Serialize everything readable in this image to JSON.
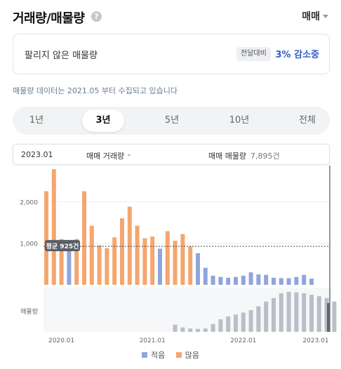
{
  "header": {
    "title": "거래량/매물량",
    "help_icon": "question-circle-icon",
    "type_select": "매매"
  },
  "summary": {
    "label": "팔리지 않은 매물량",
    "badge": "전달대비",
    "value": "3% 감소중"
  },
  "notice": "매물량 데이터는 2021.05 부터 수집되고 있습니다",
  "period_tabs": [
    {
      "label": "1년",
      "active": false
    },
    {
      "label": "3년",
      "active": true
    },
    {
      "label": "5년",
      "active": false
    },
    {
      "label": "10년",
      "active": false
    },
    {
      "label": "전체",
      "active": false
    }
  ],
  "tooltip": {
    "date": "2023.01",
    "volume_label": "매매 거래량",
    "volume_value": "-",
    "listings_label": "매매 매물량",
    "listings_value": "7,895건"
  },
  "chart_data": {
    "type": "bar",
    "y_ticks": [
      "2,000",
      "1,000"
    ],
    "y_tick_values": [
      2000,
      1000
    ],
    "ylim": [
      0,
      2800
    ],
    "average": {
      "label": "평균 925건",
      "value": 925
    },
    "x_tick_labels": [
      {
        "label": "2020.01",
        "index": 2
      },
      {
        "label": "2021.01",
        "index": 14
      },
      {
        "label": "2022.01",
        "index": 26
      },
      {
        "label": "2023.01",
        "index": 38
      }
    ],
    "volume": [
      2250,
      2780,
      1100,
      900,
      1100,
      2250,
      1420,
      950,
      880,
      1140,
      1600,
      1880,
      1420,
      1120,
      1160,
      870,
      1290,
      1060,
      1220,
      920,
      760,
      410,
      220,
      190,
      170,
      190,
      220,
      300,
      250,
      240,
      170,
      160,
      160,
      190,
      240,
      150
    ],
    "volume_level": [
      "high",
      "high",
      "high",
      "low",
      "high",
      "high",
      "high",
      "high",
      "high",
      "high",
      "high",
      "high",
      "high",
      "high",
      "high",
      "low",
      "high",
      "high",
      "high",
      "high",
      "low",
      "low",
      "low",
      "low",
      "low",
      "low",
      "low",
      "low",
      "low",
      "low",
      "low",
      "low",
      "low",
      "low",
      "low",
      "low"
    ],
    "listings_label": "매물량",
    "listings_start_index": 17,
    "listings": [
      1500,
      900,
      700,
      600,
      700,
      1600,
      2600,
      3200,
      3600,
      4000,
      4500,
      5300,
      6300,
      7000,
      8000,
      8300,
      8200,
      8000,
      7700,
      7400,
      7000,
      6300
    ],
    "listings_max": 8600,
    "legend": [
      {
        "label": "적음",
        "color": "#8fa6dc"
      },
      {
        "label": "많음",
        "color": "#f5a66e"
      }
    ]
  }
}
